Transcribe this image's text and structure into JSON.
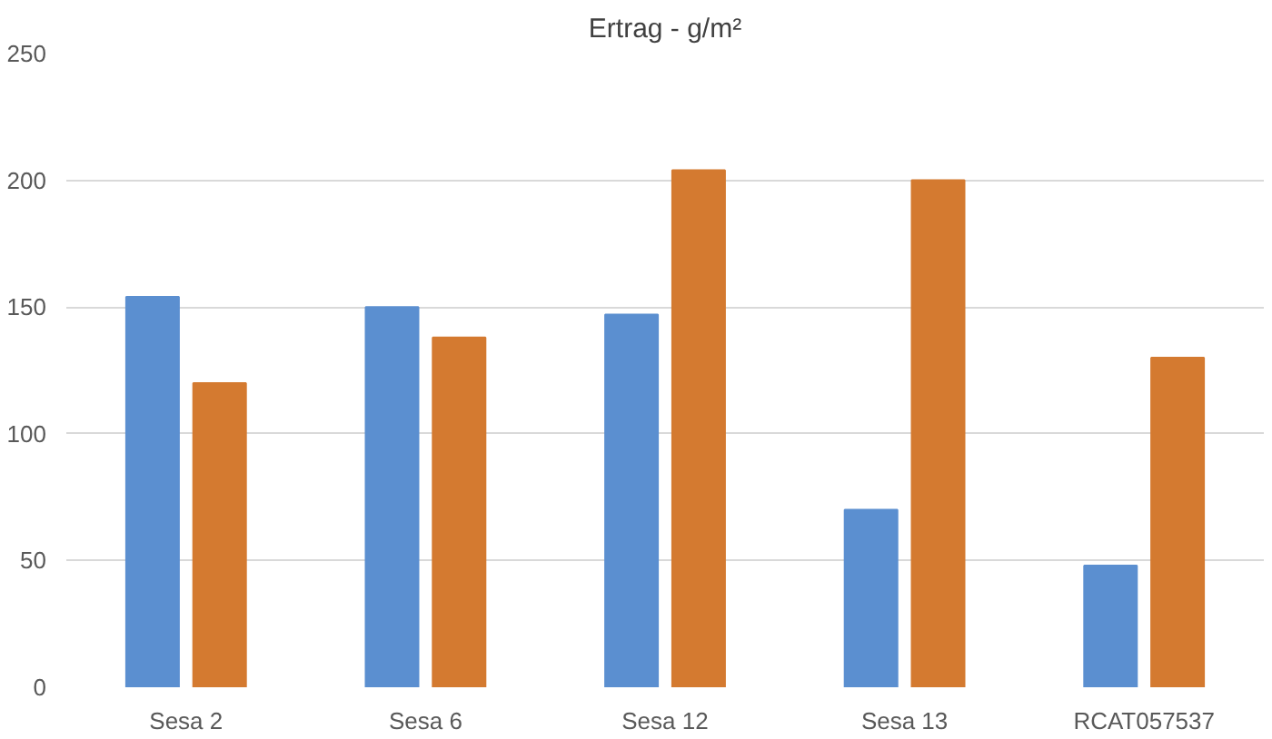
{
  "chart_data": {
    "type": "bar",
    "title": "Ertrag - g/m²",
    "categories": [
      "Sesa 2",
      "Sesa 6",
      "Sesa 12",
      "Sesa 13",
      "RCAT057537"
    ],
    "series": [
      {
        "color": "#5b8fd0",
        "values": [
          154,
          150,
          147,
          70,
          48
        ]
      },
      {
        "color": "#d47a30",
        "values": [
          120,
          138,
          204,
          200,
          130
        ]
      }
    ],
    "ylim": [
      0,
      250
    ],
    "yticks": [
      0,
      50,
      100,
      150,
      200,
      250
    ],
    "grid": "y"
  }
}
